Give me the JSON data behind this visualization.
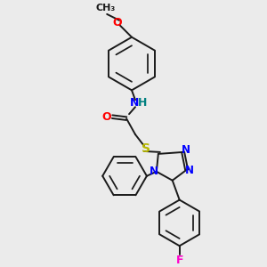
{
  "background_color": "#ebebeb",
  "bond_color": "#1a1a1a",
  "atom_colors": {
    "N": "#0000ff",
    "O": "#ff0000",
    "S": "#b8b800",
    "F": "#ff00cc",
    "NH": "#008080",
    "C": "#1a1a1a"
  },
  "font_size": 8.5,
  "fig_width": 3.0,
  "fig_height": 3.0,
  "dpi": 100
}
